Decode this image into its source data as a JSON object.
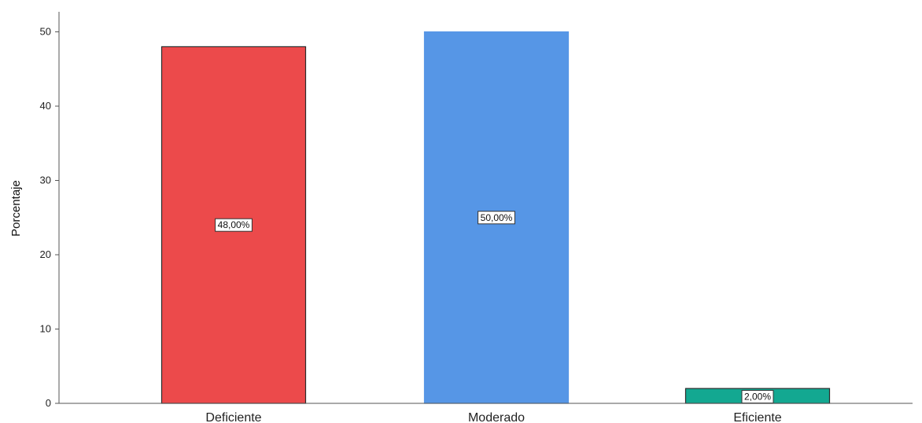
{
  "chart_data": {
    "type": "bar",
    "categories": [
      "Deficiente",
      "Moderado",
      "Eficiente"
    ],
    "values": [
      48,
      50,
      2
    ],
    "data_labels": [
      "48,00%",
      "50,00%",
      "2,00%"
    ],
    "colors": [
      "#ec4a4b",
      "#5696e6",
      "#13a891"
    ],
    "ylabel": "Porcentaje",
    "xlabel": "",
    "ylim": [
      0,
      50
    ],
    "yticks": [
      "0",
      "10",
      "20",
      "30",
      "40",
      "50"
    ],
    "grid": false,
    "legend": "none"
  }
}
